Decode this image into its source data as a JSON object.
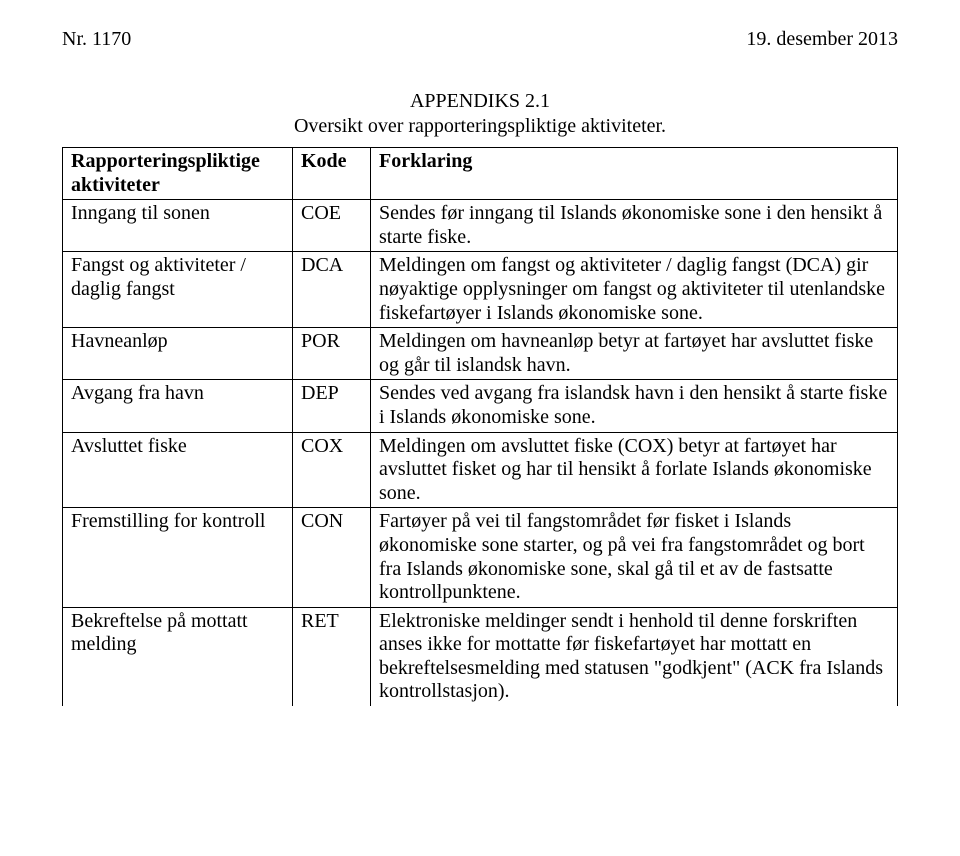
{
  "header": {
    "left": "Nr. 1170",
    "right": "19. desember 2013"
  },
  "title": {
    "line1": "APPENDIKS 2.1",
    "line2": "Oversikt over rapporteringspliktige aktiviteter."
  },
  "table": {
    "columns": {
      "activity": "Rapporteringspliktige aktiviteter",
      "code": "Kode",
      "explanation": "Forklaring"
    },
    "rows": [
      {
        "activity": "Inngang til sonen",
        "code": "COE",
        "explanation": "Sendes før inngang til Islands økonomiske sone i den hensikt å starte fiske."
      },
      {
        "activity": "Fangst og aktiviteter / daglig fangst",
        "code": "DCA",
        "explanation": "Meldingen om fangst og aktiviteter / daglig fangst (DCA) gir nøyaktige opplysninger om fangst og aktiviteter til utenlandske fiskefartøyer i Islands økonomiske sone."
      },
      {
        "activity": "Havneanløp",
        "code": "POR",
        "explanation": "Meldingen om havneanløp betyr at fartøyet har avsluttet fiske og går til islandsk havn."
      },
      {
        "activity": "Avgang fra havn",
        "code": "DEP",
        "explanation": "Sendes ved avgang fra islandsk havn i den hensikt å starte fiske i Islands økonomiske sone."
      },
      {
        "activity": "Avsluttet fiske",
        "code": "COX",
        "explanation": "Meldingen om avsluttet fiske (COX) betyr at fartøyet har avsluttet fisket og har til hensikt å forlate Islands økonomiske sone."
      },
      {
        "activity": "Fremstilling for kontroll",
        "code": "CON",
        "explanation": "Fartøyer på vei til fangstområdet før fisket i Islands økonomiske sone starter, og på vei fra fangstområdet og bort fra Islands økonomiske sone, skal gå til et av de fastsatte kontrollpunktene."
      },
      {
        "activity": "Bekreftelse på mottatt melding",
        "code": "RET",
        "explanation": "Elektroniske meldinger sendt i henhold til denne forskriften anses ikke for mottatte før fiskefartøyet har mottatt en bekreftelsesmelding med statusen \"godkjent\" (ACK fra Islands kontrollstasjon)."
      }
    ]
  }
}
